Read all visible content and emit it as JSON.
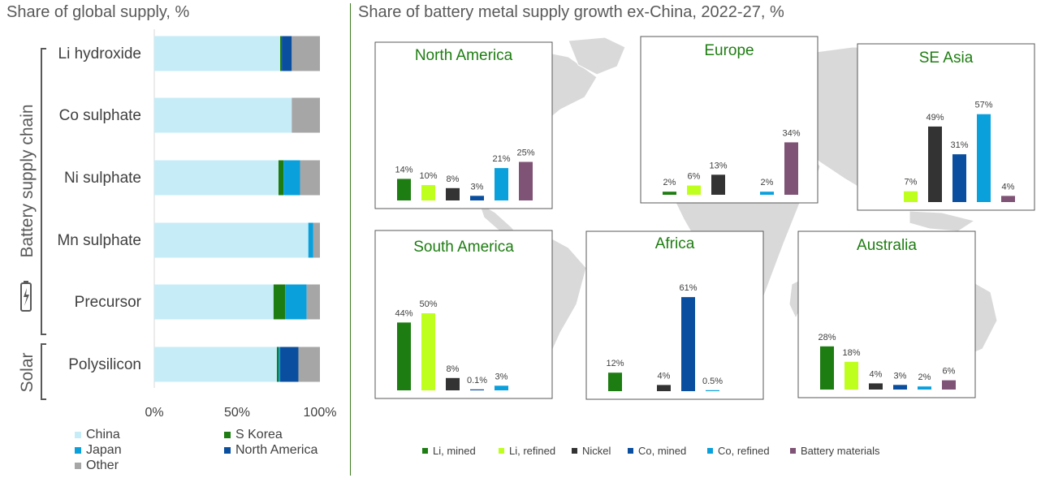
{
  "left": {
    "title": "Share of global supply, %",
    "group_labels": [
      "Battery supply chain",
      "Solar"
    ],
    "battery_icon": "battery-charging-icon"
  },
  "right": {
    "title": "Share of battery metal supply growth ex-China, 2022-27, %"
  },
  "colors": {
    "China": "#c6ecf8",
    "S Korea": "#1e7d12",
    "Japan": "#0aa0dc",
    "North America": "#0a4f9f",
    "Other": "#a6a6a6",
    "Li, mined": "#1e7d12",
    "Li, refined": "#bfff1e",
    "Nickel": "#333333",
    "Co, mined": "#0a4f9f",
    "Co, refined": "#0aa0dc",
    "Battery materials": "#7f5375",
    "divider": "#3a7d1e",
    "map": "#d9d9d9"
  },
  "chart_data": [
    {
      "type": "bar",
      "orientation": "horizontal",
      "stacked": true,
      "title": "Share of global supply, %",
      "categories": [
        "Li hydroxide",
        "Co sulphate",
        "Ni sulphate",
        "Mn sulphate",
        "Precursor",
        "Polysilicon"
      ],
      "xlim": [
        0,
        100
      ],
      "xticks": [
        "0%",
        "50%",
        "100%"
      ],
      "series": [
        {
          "name": "China",
          "values": [
            76,
            83,
            75,
            93,
            72,
            74
          ]
        },
        {
          "name": "S Korea",
          "values": [
            1,
            0,
            3,
            0,
            7,
            1
          ]
        },
        {
          "name": "Japan",
          "values": [
            0,
            0,
            10,
            3,
            13,
            1
          ]
        },
        {
          "name": "North America",
          "values": [
            6,
            0,
            0,
            0,
            0,
            11
          ]
        },
        {
          "name": "Other",
          "values": [
            17,
            17,
            12,
            4,
            8,
            13
          ]
        }
      ],
      "legend": [
        "China",
        "S Korea",
        "Japan",
        "North America",
        "Other"
      ]
    },
    {
      "type": "bar",
      "title": "Share of battery metal supply growth ex-China, 2022-27, %",
      "series_names": [
        "Li, mined",
        "Li, refined",
        "Nickel",
        "Co, mined",
        "Co, refined",
        "Battery materials"
      ],
      "panels": [
        {
          "region": "North America",
          "values": [
            14,
            10,
            8,
            3,
            21,
            25
          ],
          "labels": [
            "14%",
            "10%",
            "8%",
            "3%",
            "21%",
            "25%"
          ]
        },
        {
          "region": "Europe",
          "values": [
            2,
            6,
            13,
            null,
            2,
            34
          ],
          "labels": [
            "2%",
            "6%",
            "13%",
            "",
            "2%",
            "34%"
          ]
        },
        {
          "region": "SE Asia",
          "values": [
            null,
            7,
            49,
            31,
            57,
            4
          ],
          "labels": [
            "",
            "7%",
            "49%",
            "31%",
            "57%",
            "4%"
          ]
        },
        {
          "region": "South America",
          "values": [
            44,
            50,
            8,
            0.1,
            3,
            null
          ],
          "labels": [
            "44%",
            "50%",
            "8%",
            "0.1%",
            "3%",
            ""
          ]
        },
        {
          "region": "Africa",
          "values": [
            12,
            null,
            4,
            61,
            0.5,
            null
          ],
          "labels": [
            "12%",
            "",
            "4%",
            "61%",
            "0.5%",
            ""
          ]
        },
        {
          "region": "Australia",
          "values": [
            28,
            18,
            4,
            3,
            2,
            6
          ],
          "labels": [
            "28%",
            "18%",
            "4%",
            "3%",
            "2%",
            "6%"
          ]
        }
      ]
    }
  ]
}
